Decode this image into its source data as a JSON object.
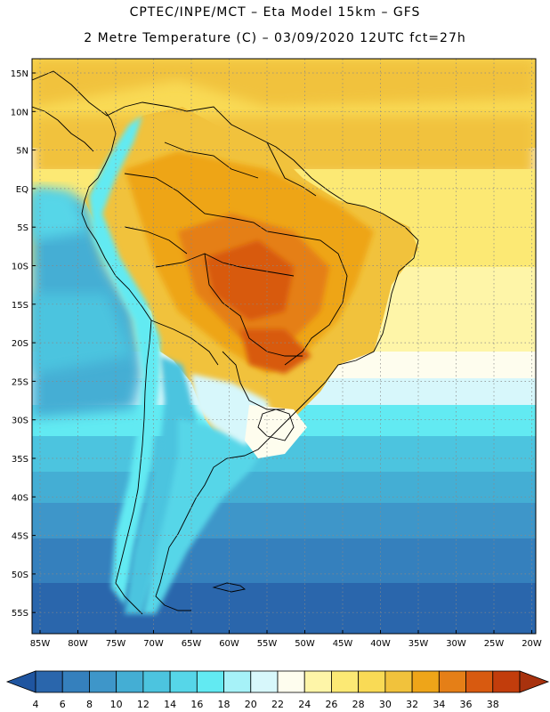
{
  "header": {
    "line1": "CPTEC/INPE/MCT –  Eta Model 15km – GFS",
    "line2": "2 Metre Temperature (C) – 03/09/2020 12UTC fct=27h"
  },
  "map": {
    "region": "South America",
    "lat_labels": [
      "15N",
      "10N",
      "5N",
      "EQ",
      "5S",
      "10S",
      "15S",
      "20S",
      "25S",
      "30S",
      "35S",
      "40S",
      "45S",
      "50S",
      "55S"
    ],
    "lon_labels": [
      "85W",
      "80W",
      "75W",
      "70W",
      "65W",
      "60W",
      "55W",
      "50W",
      "45W",
      "40W",
      "35W",
      "30W",
      "25W",
      "20W"
    ]
  },
  "colorbar": {
    "labels": [
      "4",
      "6",
      "8",
      "10",
      "12",
      "14",
      "16",
      "18",
      "20",
      "22",
      "24",
      "26",
      "28",
      "30",
      "32",
      "34",
      "36",
      "38"
    ],
    "colors": [
      "#2a66ac",
      "#3580bd",
      "#3e96c9",
      "#44aed4",
      "#4cc4df",
      "#56d6e8",
      "#62eaf2",
      "#a6f2f8",
      "#d7f7fb",
      "#fefdee",
      "#fef5a8",
      "#fce974",
      "#f9da55",
      "#f1c23c",
      "#eea519",
      "#e57f17",
      "#d85a10",
      "#c23d0c"
    ],
    "under_color": "#1f55a0",
    "over_color": "#a8320e"
  }
}
